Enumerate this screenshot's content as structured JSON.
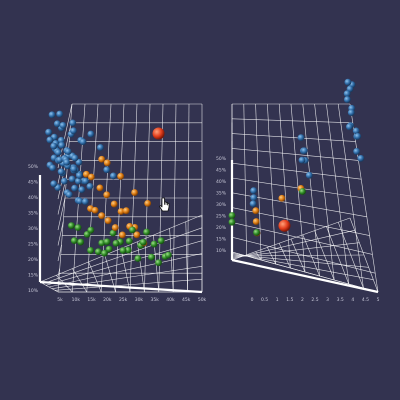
{
  "colors": {
    "background": "#333350",
    "grid": "#ffffff",
    "blue": "#2e6aa5",
    "orange": "#d9780f",
    "green": "#2e8a25",
    "highlight": "#e23d1c"
  },
  "cursor_icon": "hand-pointer-icon",
  "chart_data": [
    {
      "type": "scatter",
      "view": "3d-perspective",
      "legend": "none",
      "grid": true,
      "z_tick_labels": [
        "50%",
        "45%",
        "40%",
        "35%",
        "30%",
        "25%",
        "20%",
        "15%",
        "10%"
      ],
      "x_tick_labels": [
        "5k",
        "10k",
        "15k",
        "20k",
        "25k",
        "30k",
        "35k",
        "40k",
        "45k",
        "50k"
      ],
      "series": [
        {
          "color": "blue",
          "x": [
            5,
            5.5,
            6,
            6.5,
            7,
            7.5,
            8,
            8.5,
            9,
            9.5,
            10,
            10.5,
            11,
            11.5,
            12,
            12.5,
            13,
            13.5,
            14,
            6,
            7,
            8,
            9,
            10,
            11,
            12,
            13,
            14,
            15,
            5.5,
            6.5,
            7.5,
            8.5,
            9.5,
            10.5,
            11.5,
            12.5,
            13.5,
            6,
            7,
            8,
            9,
            10,
            11,
            12,
            13,
            14,
            15,
            16,
            17,
            7,
            8,
            9,
            10,
            11,
            12,
            13,
            14,
            15,
            16,
            18,
            20,
            22,
            24
          ],
          "z": [
            42,
            40,
            41,
            38,
            39,
            37,
            40,
            36,
            38,
            35,
            37,
            34,
            36,
            33,
            35,
            32,
            34,
            31,
            33,
            46,
            44,
            43,
            45,
            42,
            41,
            43,
            40,
            39,
            38,
            34,
            33,
            35,
            32,
            31,
            33,
            30,
            32,
            29,
            36,
            38,
            35,
            34,
            36,
            33,
            32,
            31,
            30,
            29,
            28,
            27,
            29,
            28,
            30,
            27,
            26,
            28,
            25,
            24,
            26,
            23,
            38,
            36,
            30,
            28
          ]
        },
        {
          "color": "orange",
          "x": [
            16,
            18,
            20,
            22,
            24,
            26,
            28,
            30,
            17,
            19,
            21,
            23,
            25,
            27,
            29,
            31,
            33,
            20,
            22,
            26,
            30,
            34
          ],
          "z": [
            30,
            28,
            26,
            24,
            22,
            20,
            18,
            16,
            22,
            20,
            18,
            16,
            14,
            12,
            14,
            12,
            10,
            34,
            32,
            28,
            24,
            20
          ]
        },
        {
          "color": "green",
          "x": [
            12,
            14,
            16,
            18,
            20,
            22,
            24,
            26,
            28,
            30,
            32,
            34,
            36,
            38,
            40,
            13,
            15,
            17,
            19,
            21,
            23,
            25,
            27,
            29,
            31,
            33,
            35,
            37,
            39
          ],
          "z": [
            18,
            17,
            16,
            15,
            14,
            13,
            14,
            12,
            11,
            12,
            10,
            11,
            9,
            10,
            8,
            14,
            13,
            12,
            12,
            11,
            10,
            11,
            9,
            10,
            8,
            9,
            8,
            7,
            8
          ]
        },
        {
          "color": "highlight",
          "x": [
            37
          ],
          "z": [
            38
          ]
        }
      ]
    },
    {
      "type": "scatter",
      "view": "3d-perspective",
      "legend": "none",
      "grid": true,
      "z_tick_labels": [
        "50%",
        "45%",
        "40%",
        "35%",
        "30%",
        "25%",
        "20%",
        "15%",
        "10%"
      ],
      "x_tick_labels": [
        "0",
        "0.5",
        "1",
        "1.5",
        "2",
        "2.5",
        "3",
        "3.5",
        "4",
        "4.5",
        "5"
      ],
      "series": [
        {
          "color": "blue",
          "x": [
            4.8,
            4.8,
            4.9,
            4.8,
            4.9,
            4.9,
            5.0,
            5.0,
            5.0,
            5.1,
            5.1,
            5.1,
            5.2,
            5.2,
            2.9,
            2.9,
            3.0,
            3.0,
            3.0,
            3.1,
            0.9,
            0.9,
            0.9
          ],
          "z": [
            50,
            48,
            46,
            44,
            43,
            41,
            40,
            38,
            37,
            36,
            34,
            33,
            31,
            30,
            36,
            34,
            33,
            31,
            29,
            28,
            24,
            22,
            20
          ]
        },
        {
          "color": "orange",
          "x": [
            1.0,
            1.0,
            1.0,
            2.0,
            2.8
          ],
          "z": [
            18,
            15,
            12,
            22,
            24
          ]
        },
        {
          "color": "green",
          "x": [
            0.0,
            0.0,
            1.0,
            3.0
          ],
          "z": [
            17,
            15,
            12,
            21
          ]
        },
        {
          "color": "highlight",
          "x": [
            2.2
          ],
          "z": [
            13
          ]
        }
      ]
    }
  ]
}
